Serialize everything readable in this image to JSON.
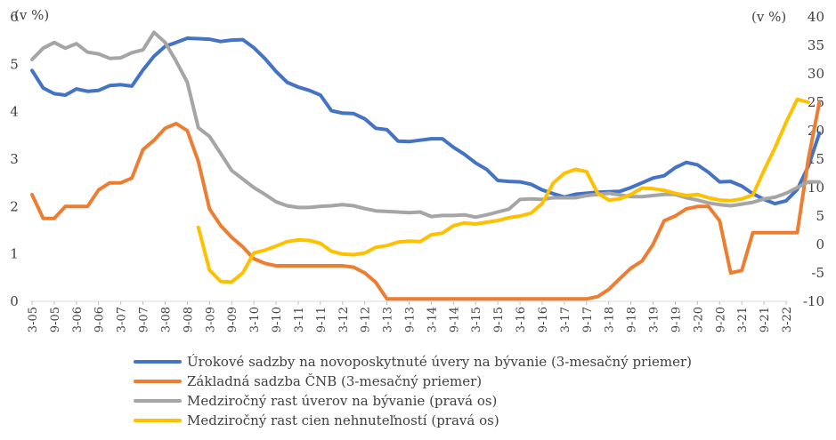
{
  "chart_data": {
    "type": "line",
    "y_left_label": "(v %)",
    "y_right_label": "(v %)",
    "ylim_left": [
      0,
      6
    ],
    "ylim_right": [
      -10,
      40
    ],
    "yticks_left": [
      "0",
      "1",
      "2",
      "3",
      "4",
      "5",
      "6"
    ],
    "yticks_right": [
      "-10",
      "-5",
      "0",
      "5",
      "10",
      "15",
      "20",
      "25",
      "30",
      "35",
      "40"
    ],
    "x_tick_labels": [
      "3-05",
      "9-05",
      "3-06",
      "9-06",
      "3-07",
      "9-07",
      "3-08",
      "9-08",
      "3-09",
      "9-09",
      "3-10",
      "9-10",
      "3-11",
      "9-11",
      "3-12",
      "9-12",
      "3-13",
      "9-13",
      "3-14",
      "9-14",
      "3-15",
      "9-15",
      "3-16",
      "9-16",
      "3-17",
      "9-17",
      "3-18",
      "9-18",
      "3-19",
      "9-19",
      "3-20",
      "9-20",
      "3-21",
      "9-21",
      "3-22"
    ],
    "grid": false,
    "legend_position": "bottom",
    "series": [
      {
        "name": "Úrokové sadzby na novoposkytnuté úvery na bývanie (3-mesačný priemer)",
        "axis": "left",
        "color": "#4472C4",
        "start_index": 0,
        "values": [
          4.87,
          4.5,
          4.38,
          4.35,
          4.48,
          4.43,
          4.45,
          4.55,
          4.57,
          4.54,
          4.88,
          5.17,
          5.38,
          5.46,
          5.55,
          5.54,
          5.53,
          5.48,
          5.51,
          5.52,
          5.35,
          5.12,
          4.85,
          4.62,
          4.52,
          4.45,
          4.35,
          4.02,
          3.97,
          3.96,
          3.85,
          3.65,
          3.62,
          3.38,
          3.37,
          3.4,
          3.43,
          3.43,
          3.25,
          3.1,
          2.92,
          2.78,
          2.55,
          2.53,
          2.52,
          2.47,
          2.35,
          2.27,
          2.2,
          2.26,
          2.28,
          2.3,
          2.31,
          2.32,
          2.4,
          2.5,
          2.6,
          2.65,
          2.82,
          2.93,
          2.88,
          2.72,
          2.52,
          2.53,
          2.43,
          2.27,
          2.15,
          2.06,
          2.12,
          2.36,
          2.85,
          3.55
        ]
      },
      {
        "name": "Základná sadzba ČNB (3-mesačný priemer)",
        "axis": "left",
        "color": "#ED7D31",
        "start_index": 0,
        "values": [
          2.25,
          1.75,
          1.75,
          2.0,
          2.0,
          2.0,
          2.35,
          2.5,
          2.5,
          2.6,
          3.2,
          3.4,
          3.65,
          3.75,
          3.6,
          2.95,
          1.95,
          1.6,
          1.35,
          1.15,
          0.9,
          0.8,
          0.75,
          0.75,
          0.75,
          0.75,
          0.75,
          0.75,
          0.75,
          0.72,
          0.6,
          0.4,
          0.05,
          0.05,
          0.05,
          0.05,
          0.05,
          0.05,
          0.05,
          0.05,
          0.05,
          0.05,
          0.05,
          0.05,
          0.05,
          0.05,
          0.05,
          0.05,
          0.05,
          0.05,
          0.05,
          0.1,
          0.25,
          0.48,
          0.7,
          0.85,
          1.2,
          1.7,
          1.8,
          1.95,
          2.0,
          2.0,
          1.7,
          0.6,
          0.65,
          1.45,
          1.45,
          1.45,
          1.45,
          1.45,
          3.0,
          4.2
        ]
      },
      {
        "name": "Medziročný rast úverov na bývanie (pravá os)",
        "axis": "right",
        "color": "#A5A5A5",
        "start_index": 0,
        "values": [
          32.5,
          34.5,
          35.5,
          34.5,
          35.3,
          33.8,
          33.5,
          32.7,
          32.8,
          33.7,
          34.2,
          37.3,
          35.5,
          32.2,
          28.5,
          20.5,
          19.0,
          16.0,
          13.0,
          11.5,
          10.0,
          8.8,
          7.5,
          6.8,
          6.5,
          6.5,
          6.7,
          6.8,
          7.0,
          6.8,
          6.3,
          5.9,
          5.8,
          5.7,
          5.6,
          5.7,
          4.9,
          5.1,
          5.1,
          5.2,
          4.8,
          5.2,
          5.7,
          6.2,
          7.9,
          8.0,
          7.9,
          8.2,
          8.2,
          8.2,
          8.6,
          8.8,
          9.0,
          8.7,
          8.4,
          8.4,
          8.6,
          8.8,
          8.8,
          8.2,
          7.8,
          7.3,
          7.0,
          6.8,
          7.1,
          7.4,
          8.0,
          8.3,
          9.0,
          10.0,
          11.0,
          11.0
        ]
      },
      {
        "name": "Medziročný rast cien nehnuteľností (pravá os)",
        "axis": "right",
        "color": "#FFC000",
        "start_index": 15,
        "values": [
          3.0,
          -4.5,
          -6.5,
          -6.6,
          -5.0,
          -1.5,
          -1.0,
          -0.3,
          0.5,
          0.8,
          0.7,
          0.2,
          -1.2,
          -1.7,
          -1.8,
          -1.5,
          -0.5,
          -0.2,
          0.4,
          0.6,
          0.5,
          1.7,
          2.0,
          3.3,
          3.8,
          3.6,
          3.9,
          4.2,
          4.7,
          5.0,
          5.5,
          7.2,
          10.8,
          12.5,
          13.2,
          12.8,
          9.0,
          7.8,
          8.0,
          8.8,
          9.9,
          9.8,
          9.5,
          9.0,
          8.6,
          8.8,
          8.2,
          7.8,
          7.7,
          8.0,
          8.7,
          13.0,
          17.0,
          21.5,
          25.5,
          25.0
        ]
      }
    ]
  }
}
